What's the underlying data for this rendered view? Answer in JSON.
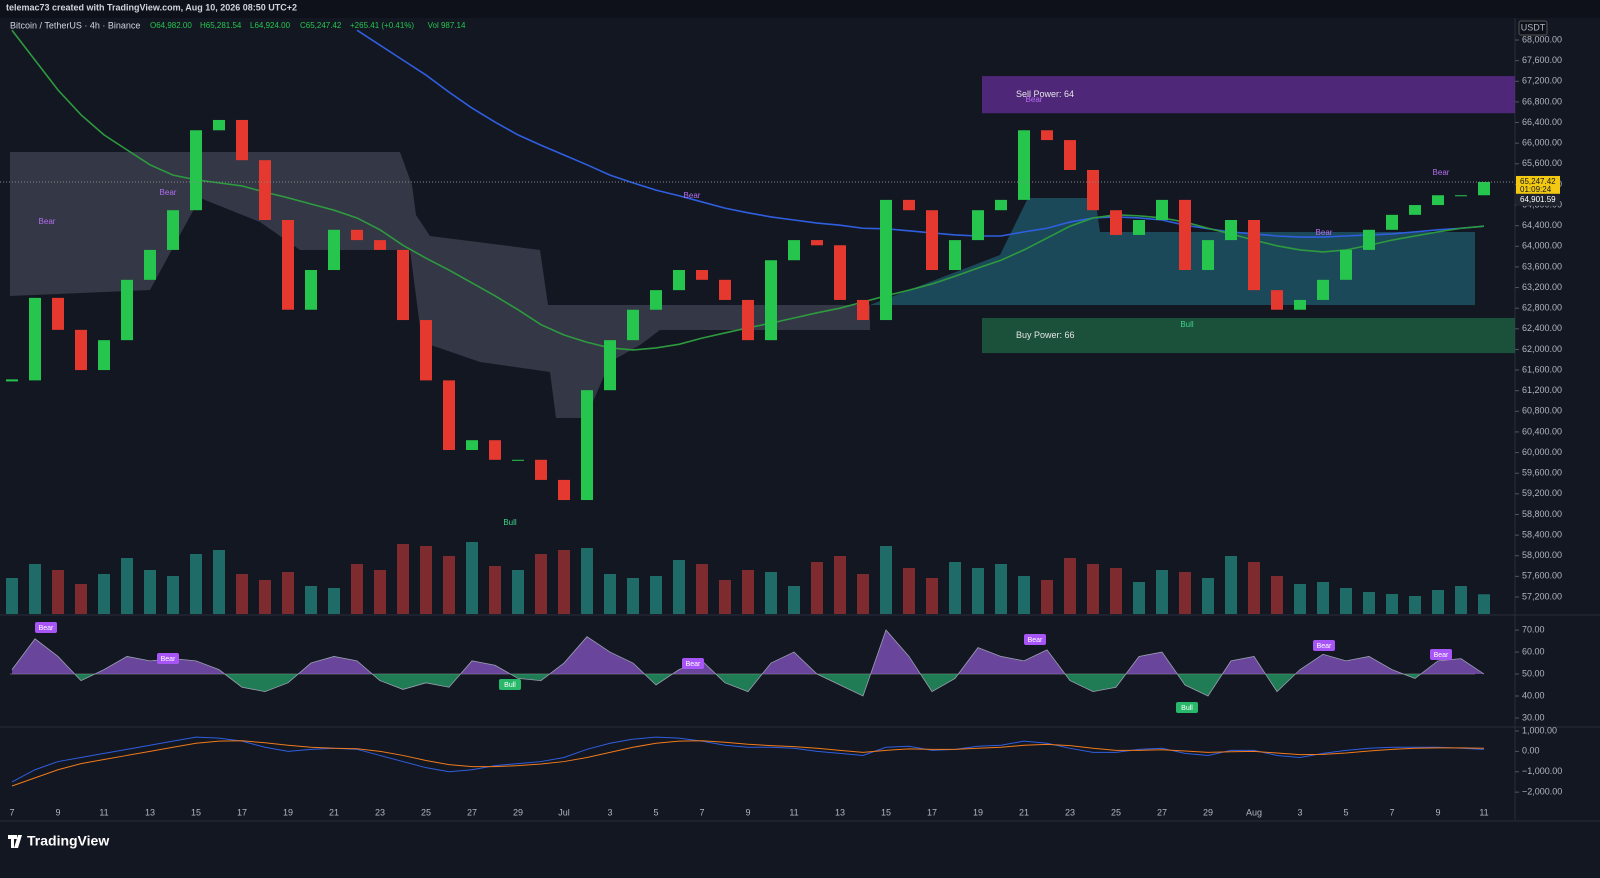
{
  "header": {
    "text": "telemac73 created with TradingView.com, Aug 10, 2026 08:50 UTC+2",
    "brand": "TradingView"
  },
  "chart_data": [
    {
      "type": "candlestick",
      "title": "Bitcoin / TetherUS · 4h · Binance",
      "ohlc": [
        "O64,982.00",
        "H65,281.54",
        "L64,924.00",
        "C65,247.42",
        "+265.41 (+0.41%)",
        "Vol 987.14"
      ],
      "currency": "USDT",
      "up_color": "#26c64e",
      "down_color": "#e5392f",
      "values": [
        61400,
        63000,
        62380,
        61600,
        62180,
        63350,
        63930,
        64700,
        66250,
        66450,
        65670,
        64510,
        62770,
        63540,
        64320,
        64120,
        63930,
        62570,
        61400,
        60050,
        60240,
        59860,
        59860,
        59470,
        59080,
        61210,
        62180,
        62770,
        63150,
        63540,
        63350,
        62960,
        62180,
        63730,
        64120,
        64020,
        62960,
        62570,
        64900,
        64700,
        63540,
        64120,
        64700,
        64900,
        66250,
        66060,
        65480,
        64700,
        64220,
        64510,
        64900,
        63540,
        64120,
        64510,
        63150,
        62770,
        62960,
        63350,
        63930,
        64320,
        64610,
        64800,
        64990,
        64990,
        65247.42
      ],
      "volume": [
        1800,
        2500,
        2200,
        1500,
        2000,
        2800,
        2200,
        1900,
        3000,
        3200,
        2000,
        1700,
        2100,
        1400,
        1300,
        2500,
        2200,
        3500,
        3400,
        2900,
        3600,
        2400,
        2200,
        3000,
        3200,
        3300,
        2000,
        1800,
        1900,
        2700,
        2500,
        1700,
        2200,
        2100,
        1400,
        2600,
        2900,
        2000,
        3400,
        2300,
        1800,
        2600,
        2300,
        2500,
        1900,
        1700,
        2800,
        2500,
        2300,
        1600,
        2200,
        2100,
        1800,
        2900,
        2600,
        1900,
        1500,
        1600,
        1300,
        1100,
        1000,
        900,
        1200,
        1400,
        987.14
      ],
      "volume_up_color": "#1f6b68",
      "volume_down_color": "#7d2b2e",
      "series": [
        {
          "color": "#2f5fe0",
          "values": [
            null,
            null,
            null,
            null,
            null,
            null,
            null,
            null,
            null,
            null,
            null,
            null,
            null,
            null,
            null,
            68190,
            67900,
            67610,
            67320,
            66990,
            66680,
            66410,
            66160,
            65960,
            65770,
            65580,
            65380,
            65230,
            65090,
            64980,
            64860,
            64740,
            64650,
            64570,
            64510,
            64450,
            64410,
            64350,
            64340,
            64300,
            64260,
            64220,
            64200,
            64200,
            64280,
            64350,
            64470,
            64550,
            64570,
            64550,
            64510,
            64410,
            64340,
            64280,
            64240,
            64200,
            64180,
            64180,
            64200,
            64220,
            64240,
            64280,
            64320,
            64350,
            64390
          ]
        },
        {
          "color": "#2e9a3e",
          "values": [
            68190,
            67610,
            67030,
            66550,
            66160,
            65870,
            65580,
            65380,
            65290,
            65230,
            65170,
            65050,
            64940,
            64820,
            64700,
            64550,
            64320,
            64020,
            63770,
            63540,
            63290,
            63040,
            62770,
            62480,
            62280,
            62140,
            62030,
            61990,
            62030,
            62100,
            62220,
            62320,
            62420,
            62510,
            62610,
            62710,
            62800,
            62920,
            63040,
            63150,
            63270,
            63420,
            63580,
            63730,
            63930,
            64160,
            64390,
            64550,
            64610,
            64590,
            64550,
            64470,
            64350,
            64240,
            64120,
            64010,
            63930,
            63890,
            63930,
            64020,
            64120,
            64200,
            64280,
            64350,
            64390
          ]
        }
      ],
      "zones": [
        {
          "label": "Sell Power: 64",
          "from": 67300,
          "to": 66580,
          "color": "#5b2a88"
        },
        {
          "label": "Buy Power: 66",
          "from": 62610,
          "to": 61930,
          "color": "#1d5a3e"
        }
      ],
      "annotations": [
        "Bear",
        "Bear",
        "Bear",
        "Bear",
        "Bear",
        "Bear",
        "Bull",
        "Bull"
      ],
      "last_price": {
        "value": 65247.42,
        "label": "65,247.42"
      },
      "countdown": "01:09:24",
      "level": {
        "value": 64901.59,
        "label": "64,901.59"
      },
      "ylim": [
        56870,
        68427
      ],
      "yticks": [
        {
          "value": 57200,
          "label": "57,200.00"
        },
        {
          "value": 57600,
          "label": "57,600.00"
        },
        {
          "value": 58000,
          "label": "58,000.00"
        },
        {
          "value": 58400,
          "label": "58,400.00"
        },
        {
          "value": 58800,
          "label": "58,800.00"
        },
        {
          "value": 59200,
          "label": "59,200.00"
        },
        {
          "value": 59600,
          "label": "59,600.00"
        },
        {
          "value": 60000,
          "label": "60,000.00"
        },
        {
          "value": 60400,
          "label": "60,400.00"
        },
        {
          "value": 60800,
          "label": "60,800.00"
        },
        {
          "value": 61200,
          "label": "61,200.00"
        },
        {
          "value": 61600,
          "label": "61,600.00"
        },
        {
          "value": 62000,
          "label": "62,000.00"
        },
        {
          "value": 62400,
          "label": "62,400.00"
        },
        {
          "value": 62800,
          "label": "62,800.00"
        },
        {
          "value": 63200,
          "label": "63,200.00"
        },
        {
          "value": 63600,
          "label": "63,600.00"
        },
        {
          "value": 64000,
          "label": "64,000.00"
        },
        {
          "value": 64400,
          "label": "64,400.00"
        },
        {
          "value": 64800,
          "label": "64,800.00"
        },
        {
          "value": 65200,
          "label": "65,200.00"
        },
        {
          "value": 65600,
          "label": "65,600.00"
        },
        {
          "value": 66000,
          "label": "66,000.00"
        },
        {
          "value": 66400,
          "label": "66,400.00"
        },
        {
          "value": 66800,
          "label": "66,800.00"
        },
        {
          "value": 67200,
          "label": "67,200.00"
        },
        {
          "value": 67600,
          "label": "67,600.00"
        },
        {
          "value": 68000,
          "label": "68,000.00"
        }
      ],
      "x_labels": [
        "7",
        "9",
        "11",
        "13",
        "15",
        "17",
        "19",
        "21",
        "23",
        "25",
        "27",
        "29",
        "Jul",
        "3",
        "5",
        "7",
        "9",
        "11",
        "13",
        "15",
        "17",
        "19",
        "21",
        "23",
        "25",
        "27",
        "29",
        "Aug",
        "3",
        "5",
        "7",
        "9",
        "11"
      ]
    },
    {
      "type": "area",
      "color_up": "#8e5bd0",
      "color_down": "#27a86a",
      "values": [
        52,
        66,
        58,
        47,
        52,
        58,
        56,
        57,
        56,
        52,
        44,
        42,
        46,
        55,
        58,
        56,
        47,
        43,
        46,
        44,
        56,
        54,
        48,
        47,
        55,
        67,
        60,
        55,
        45,
        52,
        56,
        46,
        42,
        55,
        60,
        50,
        45,
        40,
        70,
        58,
        42,
        48,
        62,
        58,
        56,
        61,
        47,
        42,
        44,
        58,
        60,
        45,
        40,
        56,
        58,
        42,
        52,
        59,
        56,
        58,
        52,
        48,
        56,
        57,
        50
      ],
      "annotations": [
        "Bear",
        "Bear",
        "Bear",
        "Bear",
        "Bear",
        "Bear",
        "Bull",
        "Bull"
      ],
      "ylim": [
        26.8,
        75.5
      ],
      "yticks": [
        {
          "value": 70,
          "label": "70.00"
        },
        {
          "value": 60,
          "label": "60.00"
        },
        {
          "value": 50,
          "label": "50.00"
        },
        {
          "value": 40,
          "label": "40.00"
        },
        {
          "value": 30,
          "label": "30.00"
        }
      ]
    },
    {
      "type": "line",
      "series": [
        {
          "color": "#2f5fe0",
          "values": [
            -1500,
            -900,
            -500,
            -300,
            -100,
            100,
            300,
            500,
            700,
            650,
            500,
            200,
            0,
            100,
            150,
            100,
            -200,
            -500,
            -800,
            -1000,
            -900,
            -700,
            -600,
            -500,
            -300,
            100,
            400,
            600,
            700,
            650,
            500,
            300,
            200,
            200,
            150,
            0,
            -100,
            -200,
            200,
            250,
            50,
            100,
            250,
            300,
            500,
            400,
            150,
            -50,
            -50,
            100,
            150,
            -100,
            -200,
            50,
            50,
            -200,
            -300,
            -100,
            50,
            150,
            200,
            200,
            200,
            150,
            100
          ]
        },
        {
          "color": "#f07a1a",
          "values": [
            -1700,
            -1300,
            -900,
            -600,
            -400,
            -200,
            0,
            200,
            400,
            500,
            520,
            420,
            300,
            200,
            150,
            130,
            0,
            -200,
            -450,
            -650,
            -750,
            -750,
            -700,
            -620,
            -500,
            -300,
            -50,
            200,
            400,
            500,
            520,
            450,
            350,
            280,
            230,
            150,
            50,
            -50,
            50,
            120,
            100,
            100,
            150,
            200,
            300,
            340,
            280,
            150,
            50,
            50,
            80,
            20,
            -50,
            -20,
            0,
            -80,
            -160,
            -150,
            -80,
            20,
            100,
            150,
            170,
            170,
            150
          ]
        }
      ],
      "ylim": [
        -3366,
        1146
      ],
      "yticks": [
        {
          "value": 1000,
          "label": "1,000.00"
        },
        {
          "value": 0,
          "label": "0.00"
        },
        {
          "value": -1000,
          "label": "−1,000.00"
        },
        {
          "value": -2000,
          "label": "−2,000.00"
        }
      ]
    }
  ]
}
